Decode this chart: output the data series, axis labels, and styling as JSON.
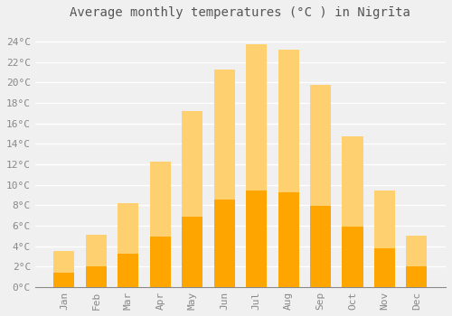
{
  "title": "Average monthly temperatures (°C ) in Nigrīta",
  "months": [
    "Jan",
    "Feb",
    "Mar",
    "Apr",
    "May",
    "Jun",
    "Jul",
    "Aug",
    "Sep",
    "Oct",
    "Nov",
    "Dec"
  ],
  "values": [
    3.5,
    5.1,
    8.2,
    12.3,
    17.2,
    21.3,
    23.7,
    23.2,
    19.8,
    14.7,
    9.4,
    5.0
  ],
  "bar_color": "#FFA500",
  "bar_color_light": "#FFD070",
  "background_color": "#F0F0F0",
  "plot_bg_color": "#F0F0F0",
  "grid_color": "#FFFFFF",
  "ylabel_ticks": [
    0,
    2,
    4,
    6,
    8,
    10,
    12,
    14,
    16,
    18,
    20,
    22,
    24
  ],
  "ylim": [
    0,
    25.5
  ],
  "tick_label_color": "#888888",
  "title_fontsize": 10,
  "tick_fontsize": 8,
  "title_color": "#555555"
}
